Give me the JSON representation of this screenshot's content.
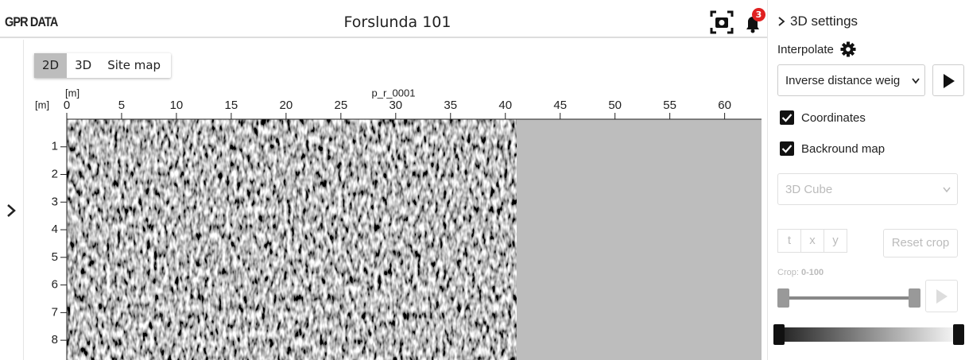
{
  "header": {
    "brand": "GPR DATA",
    "title": "Forslunda 101",
    "notification_count": "3"
  },
  "tabs": [
    "2D",
    "3D",
    "Site map"
  ],
  "radargram": {
    "profile": "p_r_0001",
    "x_unit": "[m]",
    "y_unit": "[m]",
    "xlim": [
      0,
      63
    ],
    "xticks": [
      0,
      5,
      10,
      15,
      20,
      25,
      30,
      35,
      40,
      45,
      50,
      55,
      60
    ],
    "ylim": [
      0,
      8.6
    ],
    "yticks": [
      1,
      2,
      3,
      4,
      5,
      6,
      7,
      8
    ],
    "data_end": 41
  },
  "settings": {
    "title": "3D settings",
    "interpolate_label": "Interpolate",
    "method": "Inverse distance weig",
    "checkboxes": [
      {
        "label": "Coordinates",
        "checked": true
      },
      {
        "label": "Backround map",
        "checked": true
      }
    ],
    "view": "3D Cube",
    "axis_buttons": [
      "t",
      "x",
      "y"
    ],
    "reset": "Reset crop",
    "crop_label": "Crop:",
    "crop_value": "0-100"
  }
}
